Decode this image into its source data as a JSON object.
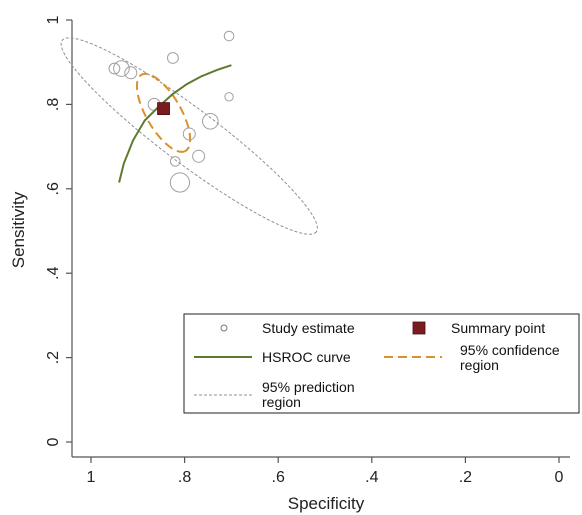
{
  "chart_data": {
    "type": "scatter",
    "xlabel": "Specificity",
    "ylabel": "Sensitivity",
    "xlim": [
      1,
      0
    ],
    "ylim": [
      0,
      1
    ],
    "x_reversed": true,
    "x_ticks": [
      1,
      0.8,
      0.6,
      0.4,
      0.2,
      0
    ],
    "x_tick_labels": [
      "1",
      ".8",
      ".6",
      ".4",
      ".2",
      "0"
    ],
    "y_ticks": [
      0,
      0.2,
      0.4,
      0.6,
      0.8,
      1
    ],
    "y_tick_labels": [
      "0",
      ".2",
      ".4",
      ".6",
      ".8",
      "1"
    ],
    "grid": false,
    "legend_position": "lower-right",
    "colors": {
      "study": "#a0a0a0",
      "summary": "#7b1c20",
      "hsroc": "#5e7a2e",
      "confidence": "#d8922c",
      "prediction": "#909090"
    },
    "legend": {
      "study": "Study estimate",
      "summary": "Summary point",
      "hsroc": "HSROC curve",
      "confidence_line1": "95% confidence",
      "confidence_line2": "region",
      "prediction_line1": "95% prediction",
      "prediction_line2": "region"
    },
    "study_estimates": [
      {
        "specificity": 0.95,
        "sensitivity": 0.885,
        "weight": 0.9
      },
      {
        "specificity": 0.935,
        "sensitivity": 0.885,
        "weight": 1.3
      },
      {
        "specificity": 0.915,
        "sensitivity": 0.875,
        "weight": 1.0
      },
      {
        "specificity": 0.825,
        "sensitivity": 0.91,
        "weight": 0.9
      },
      {
        "specificity": 0.705,
        "sensitivity": 0.962,
        "weight": 0.8
      },
      {
        "specificity": 0.705,
        "sensitivity": 0.818,
        "weight": 0.7
      },
      {
        "specificity": 0.865,
        "sensitivity": 0.8,
        "weight": 1.0
      },
      {
        "specificity": 0.745,
        "sensitivity": 0.76,
        "weight": 1.3
      },
      {
        "specificity": 0.79,
        "sensitivity": 0.73,
        "weight": 1.0
      },
      {
        "specificity": 0.77,
        "sensitivity": 0.677,
        "weight": 1.0
      },
      {
        "specificity": 0.82,
        "sensitivity": 0.665,
        "weight": 0.8
      },
      {
        "specificity": 0.81,
        "sensitivity": 0.615,
        "weight": 1.6
      }
    ],
    "summary_point": {
      "specificity": 0.845,
      "sensitivity": 0.79
    },
    "hsroc_curve": {
      "specificity": [
        0.94,
        0.93,
        0.91,
        0.885,
        0.855,
        0.825,
        0.795,
        0.765,
        0.73,
        0.7
      ],
      "sensitivity": [
        0.615,
        0.66,
        0.715,
        0.762,
        0.795,
        0.825,
        0.848,
        0.866,
        0.882,
        0.893
      ]
    },
    "confidence_region": {
      "center": {
        "specificity": 0.845,
        "sensitivity": 0.78
      },
      "semi_axis_major": 0.094,
      "semi_axis_minor": 0.041,
      "angle_deg": 60
    },
    "prediction_region": {
      "center": {
        "specificity": 0.79,
        "sensitivity": 0.725
      },
      "semi_axis_major": 0.34,
      "semi_axis_minor": 0.065,
      "angle_deg": 37
    }
  }
}
